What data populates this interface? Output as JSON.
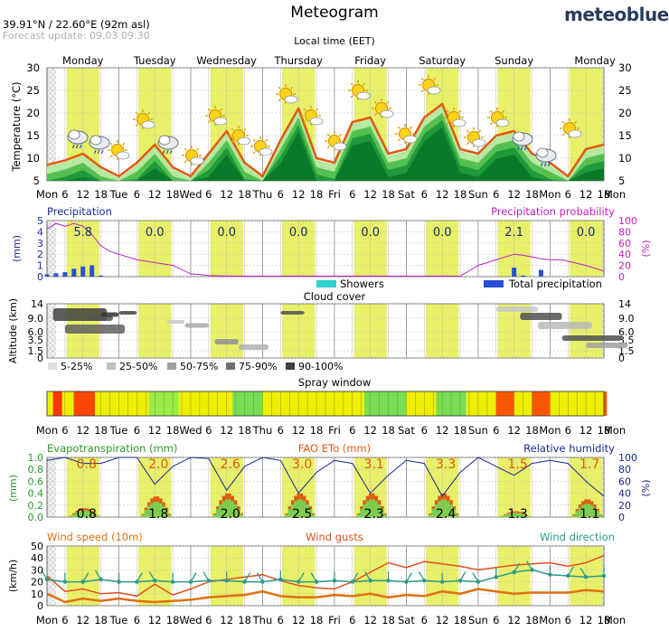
{
  "header": {
    "title": "Meteogram",
    "location": "39.91°N / 22.60°E (92m asl)",
    "forecast_update": "Forecast update: 09.03 09:30",
    "brand": "meteoblue",
    "local_time": "Local time (EET)"
  },
  "days": [
    "Monday",
    "Tuesday",
    "Wednesday",
    "Thursday",
    "Friday",
    "Saturday",
    "Sunday",
    "Monday"
  ],
  "x_axis_labels": [
    "Mon",
    "6",
    "12",
    "18",
    "Tue",
    "6",
    "12",
    "18",
    "Wed",
    "6",
    "12",
    "18",
    "Thu",
    "6",
    "12",
    "18",
    "Fri",
    "6",
    "12",
    "18",
    "Sat",
    "6",
    "12",
    "18",
    "Sun",
    "6",
    "12",
    "18",
    "Mon",
    "6",
    "12",
    "18",
    "Mon"
  ],
  "colors": {
    "yellow_band": "#e8f06a",
    "temp_line": "#e05a10",
    "rain_bar": "#2a4fd6",
    "prob_line": "#c020c0",
    "rh_line": "#1a2a8a",
    "eto_color": "#e05a10",
    "wind_speed": "#e07010",
    "wind_gusts": "#e05020",
    "wind_dir": "#2a9a8a",
    "et_green": "#2aa62a"
  },
  "chart_data": [
    {
      "type": "line",
      "title": "",
      "ylabel": "Temperature (°C)",
      "ylim": [
        5,
        30
      ],
      "yticks": [
        5,
        10,
        15,
        20,
        25,
        30
      ],
      "x_hours": [
        0,
        6,
        12,
        18,
        24,
        30,
        36,
        42,
        48,
        54,
        60,
        66,
        72,
        78,
        84,
        90,
        96,
        102,
        108,
        114,
        120,
        126,
        132,
        138,
        144,
        150,
        156,
        162,
        168,
        174,
        180,
        186
      ],
      "values": [
        8.5,
        9.5,
        11,
        8,
        6,
        9,
        13,
        8,
        6,
        11,
        16,
        9,
        6,
        14,
        21,
        10,
        9,
        18,
        19,
        11,
        12,
        19,
        22,
        12,
        11,
        15,
        16,
        11,
        9,
        6,
        12,
        13
      ]
    },
    {
      "type": "bar",
      "title": "Precipitation",
      "left_label": "Precipitation",
      "right_label": "Precipitation probability",
      "ylabel_left": "(mm)",
      "ylabel_right": "(%)",
      "ylim_left": [
        0,
        5
      ],
      "ylim_right": [
        0,
        100
      ],
      "left_ticks": [
        0,
        1,
        2,
        3,
        4,
        5
      ],
      "right_ticks": [
        0,
        20,
        40,
        60,
        80,
        100
      ],
      "daily_totals": [
        "5.8",
        "0.0",
        "0.0",
        "0.0",
        "0.0",
        "0.0",
        "2.1",
        "0.0"
      ],
      "legend": [
        "Showers",
        "Total precipitation"
      ],
      "rain_hours": [
        0,
        3,
        6,
        9,
        12,
        15,
        18,
        21,
        144,
        147,
        150,
        153,
        156,
        159,
        162,
        165,
        168
      ],
      "rain_values": [
        0.2,
        0.3,
        0.4,
        0.7,
        0.9,
        1.0,
        0.1,
        0,
        0,
        0,
        0,
        0,
        0.8,
        0.1,
        0,
        0.6,
        0
      ],
      "prob_hours": [
        0,
        3,
        6,
        9,
        12,
        15,
        18,
        21,
        24,
        30,
        36,
        42,
        48,
        54,
        60,
        66,
        72,
        78,
        84,
        90,
        96,
        102,
        108,
        114,
        120,
        126,
        132,
        138,
        144,
        147,
        150,
        153,
        156,
        159,
        162,
        165,
        168,
        172,
        176,
        180,
        186
      ],
      "prob_values": [
        85,
        95,
        90,
        95,
        90,
        75,
        55,
        45,
        40,
        30,
        25,
        20,
        5,
        2,
        1,
        1,
        1,
        1,
        1,
        1,
        1,
        1,
        1,
        1,
        1,
        1,
        1,
        1,
        20,
        25,
        30,
        35,
        40,
        38,
        35,
        32,
        30,
        30,
        25,
        20,
        10
      ]
    },
    {
      "type": "heatmap",
      "title": "Cloud cover",
      "ylabel": "Altitude (km)",
      "yticks": [
        "0",
        "1.5",
        "3.5",
        "6.0",
        "9.0",
        "14"
      ],
      "legend": [
        "5-25%",
        "25-50%",
        "50-75%",
        "75-90%",
        "90-100%"
      ]
    },
    {
      "type": "bar",
      "title": "Spray window",
      "segments": [
        {
          "from": 0,
          "to": 2,
          "color": "#eeee00"
        },
        {
          "from": 2,
          "to": 5,
          "color": "#ff3300"
        },
        {
          "from": 5,
          "to": 9,
          "color": "#eeee00"
        },
        {
          "from": 9,
          "to": 16,
          "color": "#ff4400"
        },
        {
          "from": 16,
          "to": 34,
          "color": "#eeee00"
        },
        {
          "from": 34,
          "to": 44,
          "color": "#99ee44"
        },
        {
          "from": 44,
          "to": 62,
          "color": "#eeee00"
        },
        {
          "from": 62,
          "to": 72,
          "color": "#77dd55"
        },
        {
          "from": 72,
          "to": 84,
          "color": "#eeee00"
        },
        {
          "from": 84,
          "to": 96,
          "color": "#eeee00"
        },
        {
          "from": 96,
          "to": 106,
          "color": "#eeee00"
        },
        {
          "from": 106,
          "to": 120,
          "color": "#77dd55"
        },
        {
          "from": 120,
          "to": 130,
          "color": "#eeee00"
        },
        {
          "from": 130,
          "to": 140,
          "color": "#77dd55"
        },
        {
          "from": 140,
          "to": 150,
          "color": "#eeee00"
        },
        {
          "from": 150,
          "to": 156,
          "color": "#ff5500"
        },
        {
          "from": 156,
          "to": 162,
          "color": "#eeee00"
        },
        {
          "from": 162,
          "to": 168,
          "color": "#ff5500"
        },
        {
          "from": 168,
          "to": 186,
          "color": "#eeee00"
        },
        {
          "from": 186,
          "to": 187,
          "color": "#ff5500"
        }
      ]
    },
    {
      "type": "line",
      "title": "Evapotranspiration (mm)",
      "left_label": "Evapotranspiration (mm)",
      "mid_label": "FAO ETo (mm)",
      "right_label": "Relative humidity",
      "ylabel_left": "(mm)",
      "ylabel_right": "(%)",
      "left_ticks": [
        "0.0",
        "0.2",
        "0.4",
        "0.6",
        "0.8",
        "1.0"
      ],
      "right_ticks": [
        0,
        20,
        40,
        60,
        80,
        100
      ],
      "eto_daily": [
        "0.8",
        "2.0",
        "2.6",
        "3.0",
        "3.1",
        "3.3",
        "1.5",
        "1.7"
      ],
      "et_daily": [
        "0.8",
        "1.8",
        "2.0",
        "2.5",
        "2.3",
        "2.4",
        "1.3",
        "1.1"
      ],
      "rh_hours": [
        0,
        6,
        12,
        18,
        24,
        30,
        36,
        42,
        48,
        54,
        60,
        66,
        72,
        78,
        84,
        90,
        96,
        102,
        108,
        114,
        120,
        126,
        132,
        138,
        144,
        150,
        156,
        162,
        168,
        174,
        180,
        186
      ],
      "rh_values": [
        95,
        100,
        90,
        90,
        100,
        100,
        55,
        85,
        100,
        98,
        45,
        85,
        100,
        95,
        40,
        75,
        95,
        90,
        40,
        70,
        95,
        90,
        35,
        75,
        100,
        85,
        70,
        90,
        95,
        90,
        60,
        35
      ]
    },
    {
      "type": "line",
      "title": "Wind",
      "left_label": "Wind speed (10m)",
      "mid_label": "Wind gusts",
      "right_label": "Wind direction",
      "ylabel": "(km/h)",
      "ylim": [
        0,
        50
      ],
      "yticks": [
        0,
        10,
        20,
        30,
        40,
        50
      ],
      "series": [
        {
          "name": "Wind speed (10m)",
          "x": [
            0,
            6,
            12,
            18,
            24,
            30,
            36,
            42,
            48,
            54,
            60,
            66,
            72,
            78,
            84,
            90,
            96,
            102,
            108,
            114,
            120,
            126,
            132,
            138,
            144,
            150,
            156,
            162,
            168,
            174,
            180,
            186
          ],
          "values": [
            10,
            3,
            6,
            4,
            6,
            4,
            3,
            4,
            5,
            7,
            8,
            9,
            12,
            8,
            7,
            7,
            9,
            8,
            10,
            7,
            9,
            8,
            12,
            10,
            14,
            12,
            10,
            11,
            11,
            11,
            13,
            12
          ]
        },
        {
          "name": "Wind gusts",
          "x": [
            0,
            6,
            12,
            18,
            24,
            30,
            36,
            42,
            48,
            54,
            60,
            66,
            72,
            78,
            84,
            90,
            96,
            102,
            108,
            114,
            120,
            126,
            132,
            138,
            144,
            150,
            156,
            162,
            168,
            174,
            180,
            186
          ],
          "values": [
            25,
            12,
            14,
            10,
            11,
            8,
            18,
            9,
            14,
            20,
            22,
            24,
            26,
            21,
            17,
            15,
            14,
            20,
            28,
            36,
            32,
            37,
            35,
            33,
            30,
            32,
            34,
            35,
            36,
            33,
            36,
            42
          ]
        },
        {
          "name": "Wind direction",
          "x": [
            0,
            6,
            12,
            18,
            24,
            30,
            36,
            42,
            48,
            54,
            60,
            66,
            72,
            78,
            84,
            90,
            96,
            102,
            108,
            114,
            120,
            126,
            132,
            138,
            144,
            150,
            156,
            162,
            168,
            174,
            180,
            186
          ],
          "values": [
            22,
            20,
            20,
            22,
            20,
            20,
            21,
            20,
            20,
            21,
            21,
            20,
            20,
            22,
            20,
            20,
            21,
            20,
            21,
            21,
            20,
            21,
            20,
            21,
            20,
            24,
            28,
            30,
            26,
            25,
            24,
            25
          ]
        }
      ]
    }
  ]
}
